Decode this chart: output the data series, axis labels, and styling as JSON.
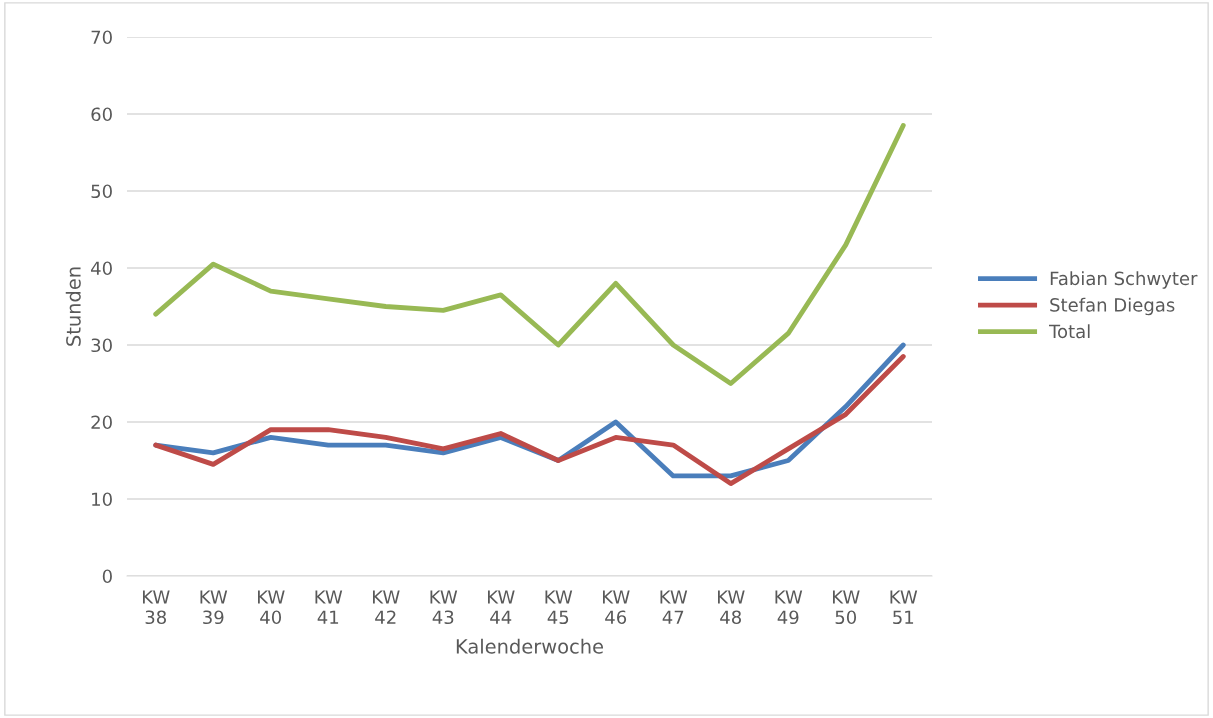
{
  "chart_data": {
    "type": "line",
    "xlabel": "Kalenderwoche",
    "ylabel": "Stunden",
    "categories": [
      "KW\n38",
      "KW\n39",
      "KW\n40",
      "KW\n41",
      "KW\n42",
      "KW\n43",
      "KW\n44",
      "KW\n45",
      "KW\n46",
      "KW\n47",
      "KW\n48",
      "KW\n49",
      "KW\n50",
      "KW\n51"
    ],
    "series": [
      {
        "name": "Fabian Schwyter",
        "color": "#4a7ebb",
        "values": [
          17,
          16,
          18,
          17,
          17,
          16,
          18,
          15,
          20,
          13,
          13,
          15,
          22,
          30
        ]
      },
      {
        "name": "Stefan Diegas",
        "color": "#be4b48",
        "values": [
          17,
          14.5,
          19,
          19,
          18,
          16.5,
          18.5,
          15,
          18,
          17,
          12,
          16.5,
          21,
          28.5
        ]
      },
      {
        "name": "Total",
        "color": "#98b954",
        "values": [
          34,
          40.5,
          37,
          36,
          35,
          34.5,
          36.5,
          30,
          38,
          30,
          25,
          31.5,
          43,
          58.5
        ]
      }
    ],
    "ylim": [
      0,
      70
    ],
    "yticks": [
      0,
      10,
      20,
      30,
      40,
      50,
      60,
      70
    ],
    "grid": "y",
    "legend": "right",
    "marker": "none",
    "line_style": "solid"
  }
}
